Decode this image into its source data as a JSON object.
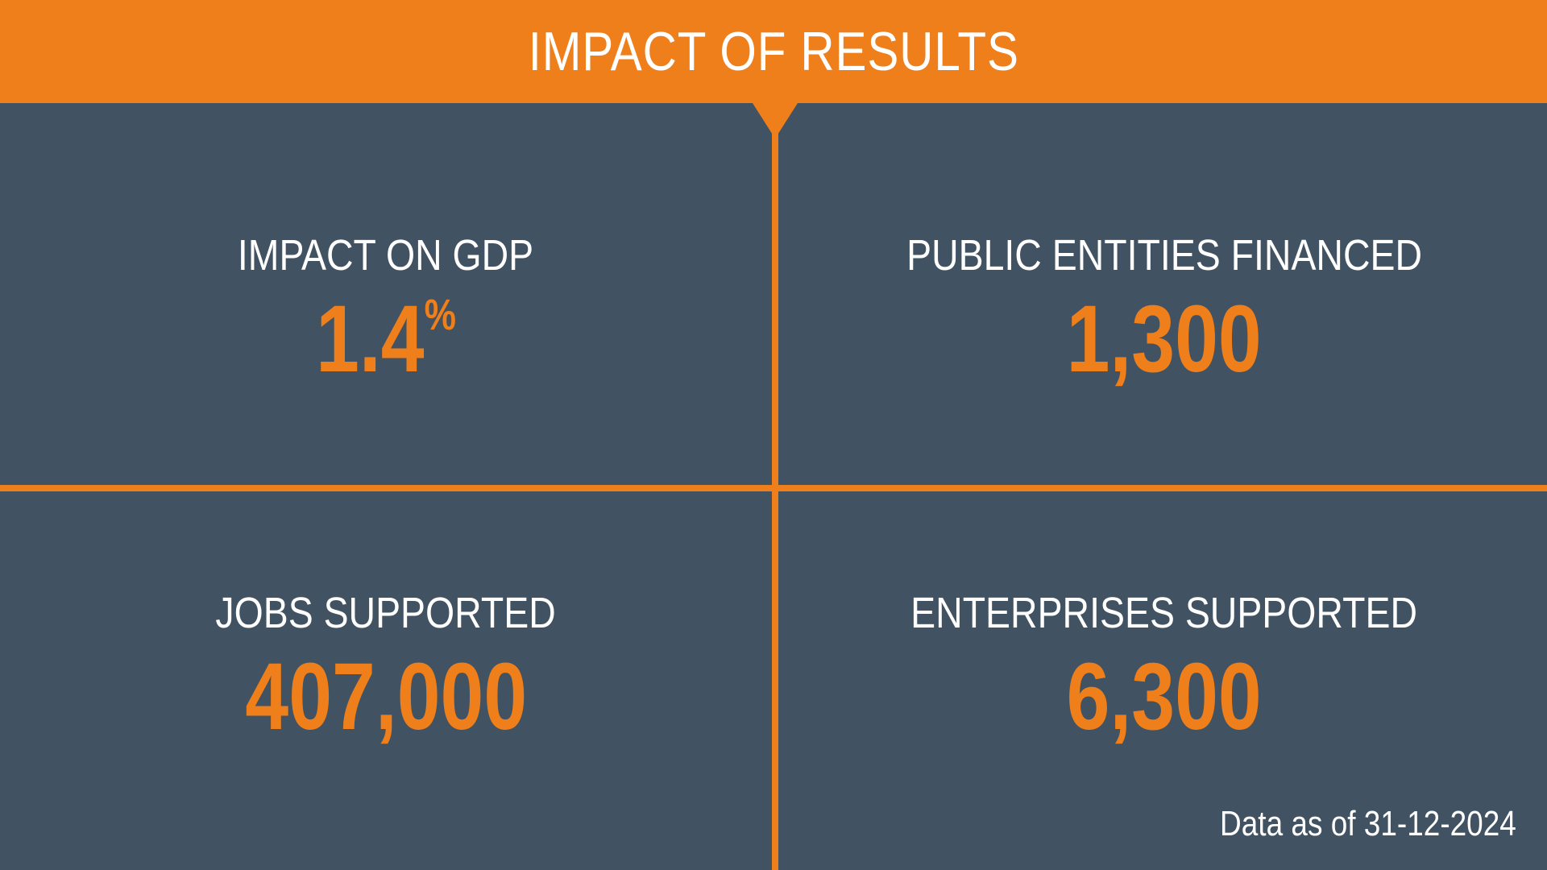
{
  "header": {
    "title": "IMPACT OF RESULTS"
  },
  "metrics": [
    {
      "label": "IMPACT ON GDP",
      "value": "1.4",
      "unit": "%"
    },
    {
      "label": "PUBLIC ENTITIES FINANCED",
      "value": "1,300"
    },
    {
      "label": "JOBS SUPPORTED",
      "value": "407,000"
    },
    {
      "label": "ENTERPRISES SUPPORTED",
      "value": "6,300"
    }
  ],
  "footnote": "Data as of 31-12-2024",
  "colors": {
    "accent": "#ee7f1a",
    "background": "#415262",
    "text": "#ffffff"
  }
}
